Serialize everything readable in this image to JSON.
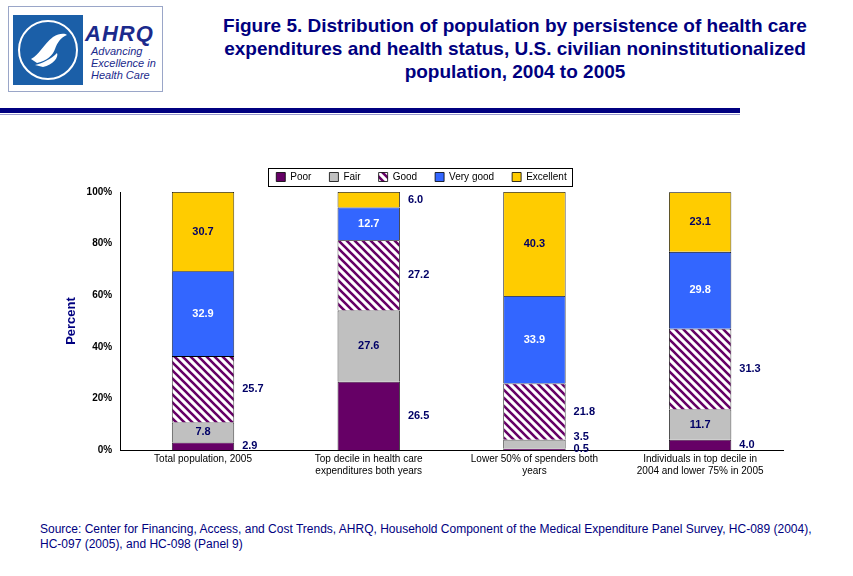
{
  "logo": {
    "text": "AHRQ",
    "subtext": "Advancing Excellence in Health Care"
  },
  "chart_data": {
    "type": "bar",
    "title": "Figure 5. Distribution of population by persistence of health care expenditures and health status, U.S. civilian noninstitutionalized population, 2004 to 2005",
    "y_label": "Percent",
    "categories": [
      "Total population, 2005",
      "Top decile in health care expenditures both years",
      "Lower 50% of spenders both years",
      "Individuals in top decile in 2004 and lower 75% in 2005"
    ],
    "series": [
      {
        "name": "Poor",
        "color": "#660066",
        "values": [
          2.9,
          26.5,
          0.5,
          4.0
        ],
        "value_labels": [
          "2.9",
          "26.5",
          "0.5",
          "4.0"
        ]
      },
      {
        "name": "Fair",
        "color": "#c0c0c0",
        "values": [
          7.8,
          27.6,
          3.5,
          11.7
        ],
        "value_labels": [
          "7.8",
          "27.6",
          "3.5",
          "11.7"
        ]
      },
      {
        "name": "Good",
        "color": "#660066",
        "values": [
          25.7,
          27.2,
          21.8,
          31.3
        ],
        "value_labels": [
          "25.7",
          "27.2",
          "21.8",
          "31.3"
        ]
      },
      {
        "name": "Very good",
        "color": "#3366ff",
        "values": [
          32.9,
          12.7,
          33.9,
          29.8
        ],
        "value_labels": [
          "32.9",
          "12.7",
          "33.9",
          "29.8"
        ]
      },
      {
        "name": "Excellent",
        "color": "#ffcc00",
        "values": [
          30.7,
          6.0,
          40.3,
          23.1
        ],
        "value_labels": [
          "30.7",
          "6.0",
          "40.3",
          "23.1"
        ]
      }
    ],
    "stacked": true,
    "data_labels": true,
    "legend": "top",
    "grid": false,
    "ylim": [
      0,
      100
    ],
    "yticks": [
      {
        "value": 0,
        "label": "0%"
      },
      {
        "value": 20,
        "label": "20%"
      },
      {
        "value": 40,
        "label": "40%"
      },
      {
        "value": 60,
        "label": "60%"
      },
      {
        "value": 80,
        "label": "80%"
      },
      {
        "value": 100,
        "label": "100%"
      }
    ]
  },
  "source": "Source: Center for Financing, Access, and Cost Trends, AHRQ, Household Component of the Medical Expenditure Panel Survey, HC-089 (2004), HC-097 (2005), and HC-098 (Panel 9)"
}
